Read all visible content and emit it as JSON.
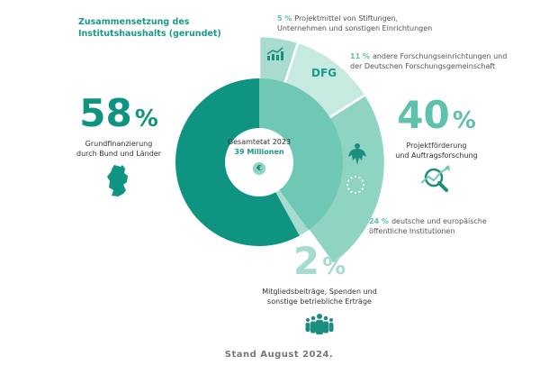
{
  "title": "Zusammensetzung des Institutshaushalts (gerundet)",
  "center": {
    "line1": "Gesamtetat 2023",
    "line2": "39 Millionen",
    "icon": "euro-icon"
  },
  "big_labels": [
    {
      "value": "58",
      "unit": "%",
      "text1": "Grundfinanzierung",
      "text2": "durch Bund und Länder",
      "icon": "germany-map-icon"
    },
    {
      "value": "40",
      "unit": "%",
      "text1": "Projektförderung",
      "text2": "und Auftragsforschung",
      "icon": "chart-magnifier-icon"
    },
    {
      "value": "2",
      "unit": "%",
      "text1": "Mitgliedsbeiträge, Spenden und",
      "text2": "sonstige betriebliche Erträge",
      "icon": "people-icon"
    }
  ],
  "notes": [
    {
      "pct": "5 %",
      "text1": "Projektmittel von Stiftungen,",
      "text2": "Unternehmen und sonstigen Einrichtungen"
    },
    {
      "pct": "11 %",
      "text1": "andere Forschungseinrichtungen und",
      "text2": "der Deutschen Forschungsgemeinschaft"
    },
    {
      "pct": "24 %",
      "text1": "deutsche und europäische",
      "text2": "öffentliche Institutionen"
    }
  ],
  "segment_labels": {
    "dfg": "DFG"
  },
  "footer": "Stand August 2024.",
  "chart_data": {
    "type": "pie",
    "title": "Zusammensetzung des Institutshaushalts (gerundet)",
    "total": "39 Millionen",
    "inner_ring": [
      {
        "name": "Projektförderung und Auftragsforschung",
        "value": 40,
        "color": "#6fc7b5"
      },
      {
        "name": "Mitgliedsbeiträge, Spenden und sonstige betriebliche Erträge",
        "value": 2,
        "color": "#a7dccf"
      },
      {
        "name": "Grundfinanzierung durch Bund und Länder",
        "value": 58,
        "color": "#0e9480"
      }
    ],
    "outer_ring": [
      {
        "name": "Projektmittel von Stiftungen, Unternehmen und sonstigen Einrichtungen",
        "value": 5,
        "color": "#a9dbcf"
      },
      {
        "name": "andere Forschungseinrichtungen und der Deutschen Forschungsgemeinschaft",
        "value": 11,
        "color": "#c6e9e0"
      },
      {
        "name": "deutsche und europäische öffentliche Institutionen",
        "value": 24,
        "color": "#8fd3c3"
      }
    ]
  }
}
